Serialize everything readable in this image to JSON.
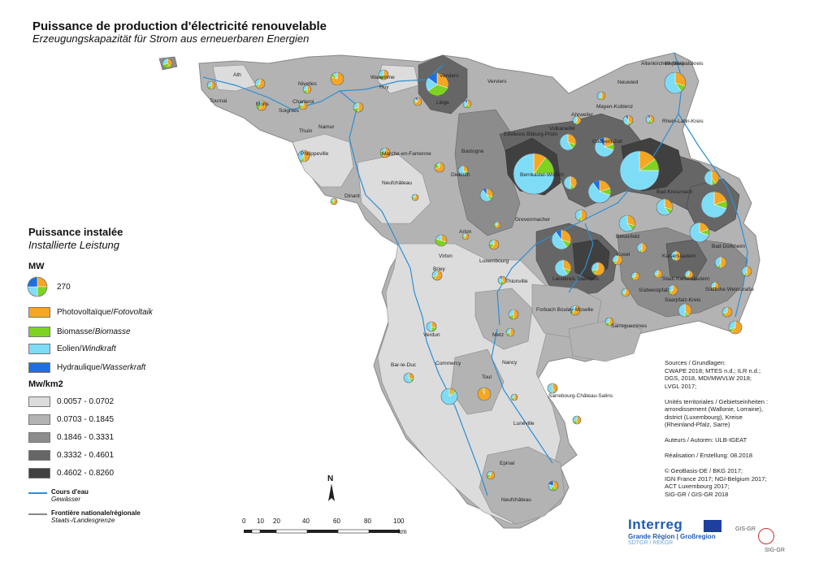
{
  "title": "Puissance de production d'électricité renouvelable",
  "subtitle": "Erzeugungskapazität für Strom aus erneuerbaren Energien",
  "legend": {
    "title": "Puissance instalée",
    "subtitle": "Installierte Leistung",
    "mw_header": "MW",
    "pie_value": "270",
    "energy": [
      {
        "fr": "Photovoltaïque/",
        "de": "Fotovoltaik",
        "color": "#f5a623"
      },
      {
        "fr": "Biomasse/",
        "de": "Biomasse",
        "color": "#7ed321"
      },
      {
        "fr": "Eolien/",
        "de": "Windkraft",
        "color": "#7fdcf7"
      },
      {
        "fr": "Hydraulique/",
        "de": "Wasserkraft",
        "color": "#1f6fe0"
      }
    ],
    "density_header": "Mw/km2",
    "density": [
      {
        "label": "0.0057 - 0.0702",
        "color": "#dcdcdc"
      },
      {
        "label": "0.0703 - 0.1845",
        "color": "#b3b3b3"
      },
      {
        "label": "0.1846 - 0.3331",
        "color": "#8c8c8c"
      },
      {
        "label": "0.3332 - 0.4601",
        "color": "#666666"
      },
      {
        "label": "0.4602 - 0.8260",
        "color": "#404040"
      }
    ],
    "river_fr": "Cours d'eau",
    "river_de": "Gewässer",
    "river_color": "#2b8fd6",
    "border_fr": "Frontière nationale/régionale",
    "border_de": "Staats-/Landesgrenze",
    "border_color": "#888888"
  },
  "scale": {
    "ticks": [
      "0",
      "10",
      "20",
      "40",
      "60",
      "80",
      "100"
    ],
    "unit": "km"
  },
  "north": "N",
  "sources": {
    "lines": [
      "Sources / Grundlagen:",
      "CWAPE 2018; MTES n.d.; ILR n.d.;",
      "DGS, 2018, MDI/MWVLW 2018;",
      "LVGL 2017;",
      "",
      "Unités territoriales / Gebietseinheiten :",
      "arrondissement (Wallonie, Lorraine),",
      "district (Luxembourg), Kreise",
      "(Rheinland-Pfalz, Sarre)",
      "",
      "Auteurs / Autoren: ULB-IGEAT",
      "",
      "Réalisation / Erstellung: 08.2018",
      "",
      "© GeoBasis-DE / BKG 2017;",
      "IGN France 2017; NGI-Belgium 2017;",
      "ACT Luxembourg 2017;",
      "SIG-GR / GIS-GR 2018"
    ]
  },
  "logos": {
    "interreg": "Interreg",
    "grande_region": "Grande Région | Großregion",
    "sdtgr": "SDTGR / REKGR",
    "gis": "GIS-GR",
    "sig": "SIG-GR"
  },
  "places": [
    "Ath",
    "Tournai",
    "Mons",
    "Soignies",
    "Nivelles",
    "Charleroi",
    "Thuin",
    "Namur",
    "Waremme",
    "Huy",
    "Liège",
    "Verviers",
    "Verviers",
    "Philippeville",
    "Dinant",
    "Marche-en-Famenne",
    "Neufchâteau",
    "Bastogne",
    "Diekirch",
    "Grevenmacher",
    "Arlon",
    "Virton",
    "Luxembourg",
    "Briey",
    "Altenkirchen (Ww)",
    "Westerwaldkreis",
    "Neuwied",
    "Ahrweiler",
    "Mayen-Koblenz",
    "Rhein-Lahn-Kreis",
    "Vulkaneifel",
    "Cochem-Zell",
    "Eifelkreis Bitburg-Prüm",
    "Bernkastel-Wittlich",
    "Bad Kreuznach",
    "Birkenfeld",
    "Kusel",
    "Kaiserslautern",
    "Bad Dürkheim",
    "Landkreis Saarlouis",
    "Stadt Kaiserslautern",
    "Südwestpfalz",
    "Südliche Weinstraße",
    "Saarpfalz-Kreis",
    "Thionville",
    "Forbach Boulay-Moselle",
    "Sarreguemines",
    "Verdun",
    "Metz",
    "Bar-le-Duc",
    "Commercy",
    "Toul",
    "Nancy",
    "Sarrebourg-Château-Salins",
    "Lunéville",
    "Epinal",
    "Neufchâteau"
  ]
}
